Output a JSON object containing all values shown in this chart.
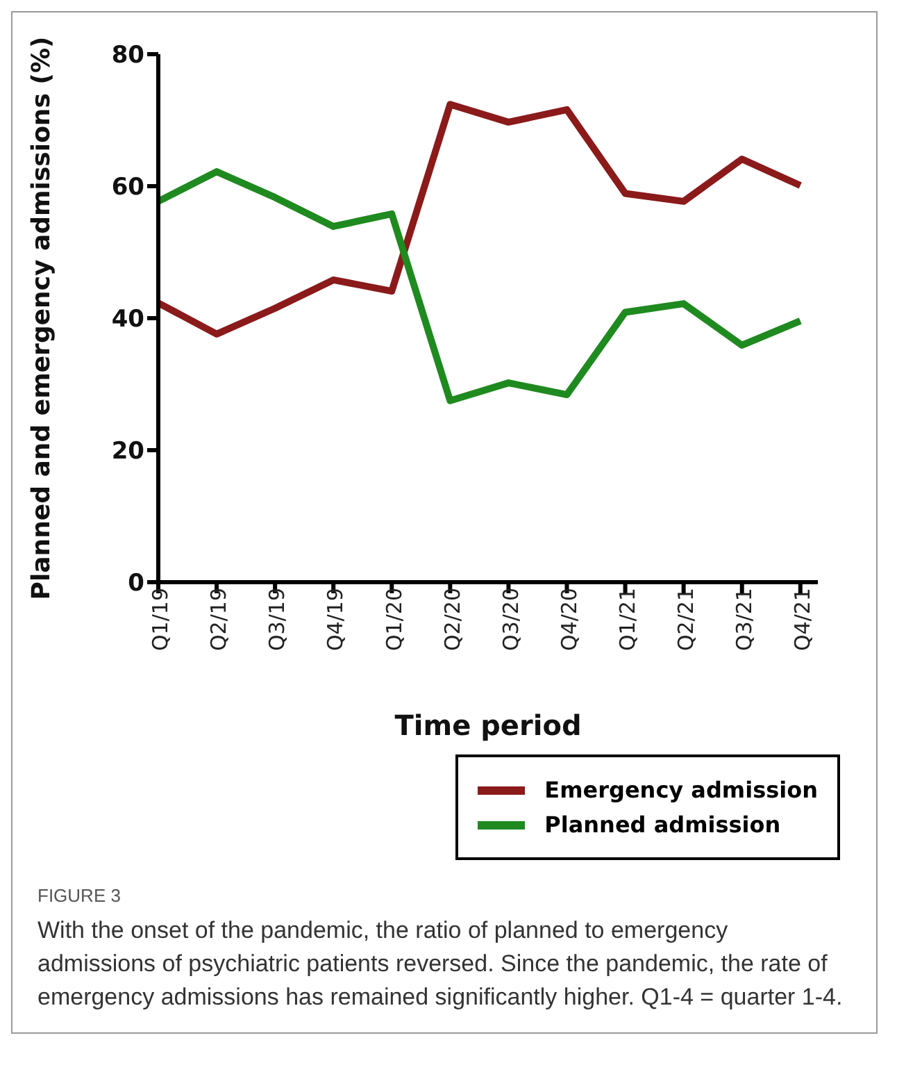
{
  "chart_data": {
    "type": "line",
    "xlabel": "Time period",
    "ylabel": "Planned and emergency admissions (%)",
    "categories": [
      "Q1/19",
      "Q2/19",
      "Q3/19",
      "Q4/19",
      "Q1/20",
      "Q2/20",
      "Q3/20",
      "Q4/20",
      "Q1/21",
      "Q2/21",
      "Q3/21",
      "Q4/21"
    ],
    "series": [
      {
        "name": "Emergency admission",
        "color": "#8b1a1a",
        "values": [
          42.3,
          37.6,
          41.5,
          45.8,
          44.1,
          72.4,
          69.7,
          71.6,
          58.9,
          57.7,
          64.1,
          60.1
        ]
      },
      {
        "name": "Planned admission",
        "color": "#1f8a1f",
        "values": [
          57.7,
          62.2,
          58.3,
          53.9,
          55.8,
          27.5,
          30.2,
          28.4,
          40.9,
          42.2,
          35.9,
          39.6
        ]
      }
    ],
    "ylim": [
      0,
      80
    ],
    "yticks": [
      0,
      20,
      40,
      60,
      80
    ],
    "grid": false,
    "legend": "bottom right",
    "marker": "none",
    "line_style": "solid",
    "annotations": [
      "FIGURE 3",
      "With the onset of the pandemic, the ratio of planned to emergency admissions of psychiatric patients reversed. Since the pandemic, the rate of emergency admissions has remained significantly higher. Q1-4 = quarter 1-4."
    ]
  }
}
